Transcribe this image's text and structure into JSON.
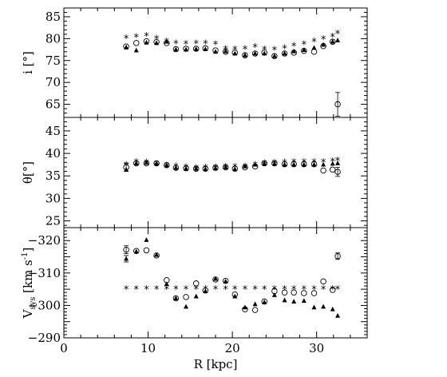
{
  "chart_data": [
    {
      "type": "scatter",
      "ylabel": "i [°]",
      "xlabel": "",
      "xlim": [
        0,
        36
      ],
      "ylim": [
        62,
        87
      ],
      "yticks": [
        65,
        70,
        75,
        80,
        85
      ],
      "series": [
        {
          "marker": "open-circle",
          "points": [
            [
              7.4,
              78.2
            ],
            [
              8.6,
              79.0
            ],
            [
              9.8,
              79.4
            ],
            [
              11.0,
              79.2
            ],
            [
              12.2,
              79.0
            ],
            [
              13.3,
              77.6
            ],
            [
              14.5,
              77.7
            ],
            [
              15.7,
              77.7
            ],
            [
              16.8,
              77.8
            ],
            [
              18.0,
              77.3
            ],
            [
              19.2,
              77.0
            ],
            [
              20.3,
              76.8
            ],
            [
              21.5,
              76.2
            ],
            [
              22.7,
              76.6
            ],
            [
              23.8,
              76.8
            ],
            [
              25.0,
              76.0
            ],
            [
              26.2,
              76.6
            ],
            [
              27.3,
              76.8
            ],
            [
              28.5,
              77.2
            ],
            [
              29.7,
              77.0
            ],
            [
              30.8,
              78.3
            ],
            [
              31.9,
              79.3
            ],
            [
              32.5,
              65.0
            ]
          ]
        },
        {
          "marker": "filled-triangle",
          "points": [
            [
              7.4,
              78.0
            ],
            [
              8.6,
              77.3
            ],
            [
              9.8,
              79.1
            ],
            [
              11.0,
              79.0
            ],
            [
              12.2,
              79.3
            ],
            [
              13.3,
              77.5
            ],
            [
              14.5,
              77.5
            ],
            [
              15.7,
              77.6
            ],
            [
              16.8,
              77.6
            ],
            [
              18.0,
              77.0
            ],
            [
              19.2,
              77.1
            ],
            [
              20.3,
              76.6
            ],
            [
              21.5,
              76.2
            ],
            [
              22.7,
              76.6
            ],
            [
              23.8,
              76.6
            ],
            [
              25.0,
              76.0
            ],
            [
              26.2,
              76.6
            ],
            [
              27.3,
              77.1
            ],
            [
              28.5,
              77.4
            ],
            [
              29.7,
              77.9
            ],
            [
              30.8,
              78.6
            ],
            [
              31.9,
              79.3
            ],
            [
              32.5,
              79.6
            ]
          ]
        },
        {
          "marker": "star",
          "points": [
            [
              7.4,
              80.1
            ],
            [
              8.6,
              80.3
            ],
            [
              9.8,
              80.6
            ],
            [
              11.0,
              80.0
            ],
            [
              12.2,
              79.3
            ],
            [
              13.3,
              78.9
            ],
            [
              14.5,
              78.8
            ],
            [
              15.7,
              78.9
            ],
            [
              16.8,
              78.9
            ],
            [
              18.0,
              78.7
            ],
            [
              19.2,
              77.6
            ],
            [
              20.3,
              77.5
            ],
            [
              21.5,
              77.6
            ],
            [
              22.7,
              78.1
            ],
            [
              23.8,
              77.5
            ],
            [
              25.0,
              77.4
            ],
            [
              26.2,
              77.8
            ],
            [
              27.3,
              78.3
            ],
            [
              28.5,
              78.7
            ],
            [
              29.7,
              79.3
            ],
            [
              30.8,
              79.9
            ],
            [
              31.9,
              80.4
            ],
            [
              32.5,
              81.2
            ]
          ]
        }
      ],
      "errorbars": [
        {
          "x": 32.5,
          "y": 65.0,
          "err": 2.7
        }
      ]
    },
    {
      "type": "scatter",
      "ylabel": "θ[°]",
      "xlabel": "",
      "xlim": [
        0,
        36
      ],
      "ylim": [
        23.5,
        48
      ],
      "yticks": [
        25,
        30,
        35,
        40,
        45
      ],
      "series": [
        {
          "marker": "open-circle",
          "points": [
            [
              7.4,
              36.9
            ],
            [
              8.6,
              37.8
            ],
            [
              9.8,
              37.8
            ],
            [
              11.0,
              37.8
            ],
            [
              12.2,
              37.4
            ],
            [
              13.3,
              36.8
            ],
            [
              14.5,
              36.7
            ],
            [
              15.7,
              36.6
            ],
            [
              16.8,
              36.6
            ],
            [
              18.0,
              36.8
            ],
            [
              19.2,
              36.9
            ],
            [
              20.3,
              36.6
            ],
            [
              21.5,
              36.9
            ],
            [
              22.7,
              37.1
            ],
            [
              23.8,
              37.8
            ],
            [
              25.0,
              37.8
            ],
            [
              26.2,
              37.6
            ],
            [
              27.3,
              37.6
            ],
            [
              28.5,
              37.6
            ],
            [
              29.7,
              37.6
            ],
            [
              30.8,
              36.2
            ],
            [
              31.9,
              36.4
            ],
            [
              32.5,
              35.9
            ]
          ]
        },
        {
          "marker": "filled-triangle",
          "points": [
            [
              7.4,
              36.4
            ],
            [
              8.6,
              37.8
            ],
            [
              9.8,
              37.9
            ],
            [
              11.0,
              37.7
            ],
            [
              12.2,
              37.3
            ],
            [
              13.3,
              36.8
            ],
            [
              14.5,
              36.6
            ],
            [
              15.7,
              36.6
            ],
            [
              16.8,
              36.5
            ],
            [
              18.0,
              36.7
            ],
            [
              19.2,
              36.9
            ],
            [
              20.3,
              36.5
            ],
            [
              21.5,
              37.1
            ],
            [
              22.7,
              37.5
            ],
            [
              23.8,
              37.7
            ],
            [
              25.0,
              37.7
            ],
            [
              26.2,
              37.5
            ],
            [
              27.3,
              37.5
            ],
            [
              28.5,
              37.5
            ],
            [
              29.7,
              37.5
            ],
            [
              30.8,
              37.5
            ],
            [
              31.9,
              37.7
            ],
            [
              32.5,
              37.8
            ]
          ]
        },
        {
          "marker": "star",
          "points": [
            [
              7.4,
              37.4
            ],
            [
              8.6,
              38.1
            ],
            [
              9.8,
              38.0
            ],
            [
              11.0,
              37.6
            ],
            [
              12.2,
              37.3
            ],
            [
              13.3,
              37.1
            ],
            [
              14.5,
              36.9
            ],
            [
              15.7,
              36.7
            ],
            [
              16.8,
              36.8
            ],
            [
              18.0,
              36.9
            ],
            [
              19.2,
              37.0
            ],
            [
              20.3,
              37.0
            ],
            [
              21.5,
              37.1
            ],
            [
              22.7,
              37.4
            ],
            [
              23.8,
              37.8
            ],
            [
              25.0,
              37.9
            ],
            [
              26.2,
              38.0
            ],
            [
              27.3,
              38.1
            ],
            [
              28.5,
              38.1
            ],
            [
              29.7,
              38.1
            ],
            [
              30.8,
              38.1
            ],
            [
              31.9,
              38.2
            ],
            [
              32.5,
              38.4
            ]
          ]
        }
      ],
      "errorbars": [
        {
          "x": 7.4,
          "y": 36.9,
          "err": 0.9
        },
        {
          "x": 32.5,
          "y": 35.9,
          "err": 1.0
        }
      ]
    },
    {
      "type": "scatter",
      "ylabel": "V",
      "ylabel_sub": "sys",
      "ylabel_unit": " [km s",
      "ylabel_sup": "-1",
      "ylabel_close": "]",
      "xlabel": "R [kpc]",
      "xlim": [
        0,
        36
      ],
      "ylim": [
        -290,
        -324
      ],
      "yticks": [
        -320,
        -310,
        -300,
        -290
      ],
      "xticks": [
        0,
        10,
        20,
        30
      ],
      "series": [
        {
          "marker": "open-circle",
          "points": [
            [
              7.4,
              -317.2
            ],
            [
              8.6,
              -316.8
            ],
            [
              9.8,
              -317.0
            ],
            [
              11.0,
              -315.4
            ],
            [
              12.2,
              -307.8
            ],
            [
              13.3,
              -302.2
            ],
            [
              14.5,
              -302.6
            ],
            [
              15.7,
              -306.8
            ],
            [
              16.8,
              -304.6
            ],
            [
              18.0,
              -308.0
            ],
            [
              19.2,
              -307.6
            ],
            [
              20.3,
              -303.4
            ],
            [
              21.5,
              -298.8
            ],
            [
              22.7,
              -298.6
            ],
            [
              23.8,
              -301.2
            ],
            [
              25.0,
              -304.4
            ],
            [
              26.2,
              -304.0
            ],
            [
              27.3,
              -304.0
            ],
            [
              28.5,
              -303.8
            ],
            [
              29.7,
              -303.8
            ],
            [
              30.8,
              -307.4
            ],
            [
              31.9,
              -304.8
            ],
            [
              32.5,
              -315.2
            ]
          ]
        },
        {
          "marker": "filled-triangle",
          "points": [
            [
              7.4,
              -314.4
            ],
            [
              8.6,
              -316.6
            ],
            [
              9.8,
              -320.2
            ],
            [
              11.0,
              -315.6
            ],
            [
              12.2,
              -306.6
            ],
            [
              13.3,
              -302.2
            ],
            [
              14.5,
              -299.6
            ],
            [
              15.7,
              -302.8
            ],
            [
              16.8,
              -304.4
            ],
            [
              18.0,
              -308.2
            ],
            [
              19.2,
              -307.4
            ],
            [
              20.3,
              -302.8
            ],
            [
              21.5,
              -299.4
            ],
            [
              22.7,
              -300.4
            ],
            [
              23.8,
              -301.0
            ],
            [
              25.0,
              -303.2
            ],
            [
              26.2,
              -301.6
            ],
            [
              27.3,
              -301.2
            ],
            [
              28.5,
              -301.4
            ],
            [
              29.7,
              -299.4
            ],
            [
              30.8,
              -299.6
            ],
            [
              31.9,
              -298.8
            ],
            [
              32.5,
              -296.8
            ]
          ]
        },
        {
          "marker": "star",
          "points": [
            [
              7.4,
              -305.0
            ],
            [
              8.6,
              -305.0
            ],
            [
              9.8,
              -305.0
            ],
            [
              11.0,
              -305.0
            ],
            [
              12.2,
              -305.0
            ],
            [
              13.3,
              -305.0
            ],
            [
              14.5,
              -305.0
            ],
            [
              15.7,
              -305.0
            ],
            [
              16.8,
              -305.0
            ],
            [
              18.0,
              -305.0
            ],
            [
              19.2,
              -305.0
            ],
            [
              20.3,
              -305.0
            ],
            [
              21.5,
              -305.0
            ],
            [
              22.7,
              -305.0
            ],
            [
              23.8,
              -305.0
            ],
            [
              25.0,
              -305.0
            ],
            [
              26.2,
              -305.0
            ],
            [
              27.3,
              -305.0
            ],
            [
              28.5,
              -305.0
            ],
            [
              29.7,
              -305.0
            ],
            [
              30.8,
              -305.0
            ],
            [
              31.9,
              -305.0
            ],
            [
              32.5,
              -305.0
            ]
          ]
        }
      ],
      "errorbars": [
        {
          "x": 7.4,
          "y": -317.2,
          "err": 1.2
        },
        {
          "x": 7.4,
          "y": -314.4,
          "err": 1.0
        },
        {
          "x": 32.5,
          "y": -315.2,
          "err": 1.0
        }
      ]
    }
  ]
}
